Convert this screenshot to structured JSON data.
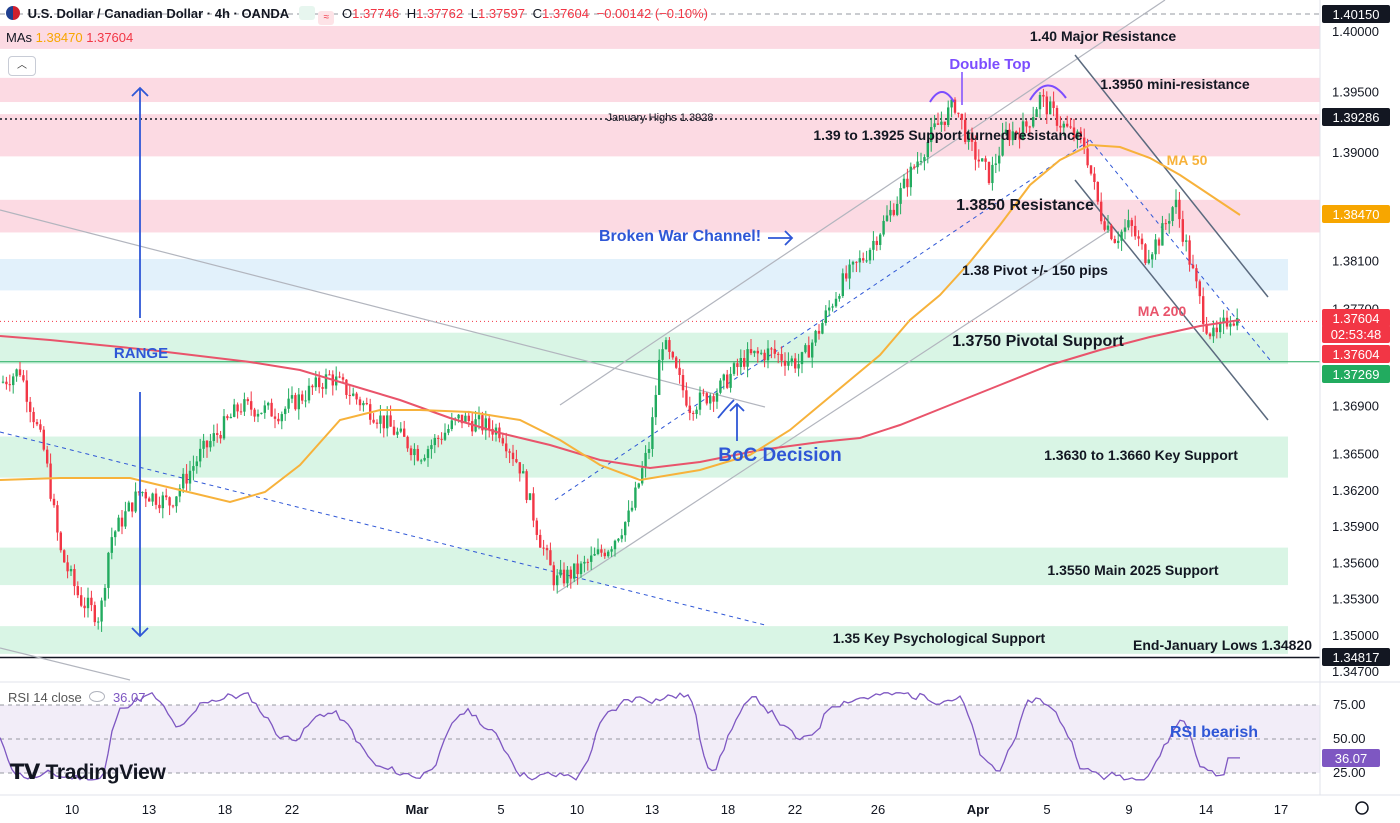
{
  "header": {
    "symbol": "U.S. Dollar / Canadian Dollar · 4h · OANDA",
    "open_label": "O",
    "open": "1.37746",
    "high_label": "H",
    "high": "1.37762",
    "low_label": "L",
    "low": "1.37597",
    "close_label": "C",
    "close": "1.37604",
    "change": "−0.00142 (−0.10%)"
  },
  "mas": {
    "label": "MAs",
    "ma50": "1.38470",
    "ma200": "1.37604"
  },
  "rsi": {
    "label": "RSI 14 close",
    "value": "36.07",
    "ticks": [
      "75.00",
      "50.00",
      "25.00"
    ],
    "annotation": "RSI bearish"
  },
  "watermark": "TradingView",
  "chart_data": {
    "type": "candlestick",
    "instrument": "USD/CAD",
    "timeframe": "4h",
    "ylim": [
      1.347,
      1.4015
    ],
    "price_ticks": [
      "1.40000",
      "1.39500",
      "1.39000",
      "1.38100",
      "1.37700",
      "1.36900",
      "1.36500",
      "1.36200",
      "1.35900",
      "1.35600",
      "1.35300",
      "1.35000",
      "1.34700"
    ],
    "x_ticks": [
      "10",
      "13",
      "18",
      "22",
      "Mar",
      "5",
      "10",
      "13",
      "18",
      "22",
      "26",
      "Apr",
      "5",
      "9",
      "14",
      "17"
    ],
    "price_badges": [
      {
        "text": "1.40150",
        "color": "#131722"
      },
      {
        "text": "1.39286",
        "color": "#131722"
      },
      {
        "text": "1.38470",
        "color": "#f7a600"
      },
      {
        "text": "1.37604",
        "color": "#f23645"
      },
      {
        "text": "02:53:48",
        "color": "#f23645"
      },
      {
        "text": "1.37604",
        "color": "#f23645"
      },
      {
        "text": "1.37269",
        "color": "#22ab5f"
      },
      {
        "text": "1.34817",
        "color": "#131722"
      }
    ],
    "zones": [
      {
        "label": "1.40 Major Resistance",
        "low": 1.3986,
        "high": 1.4005,
        "kind": "resistance"
      },
      {
        "label": "1.3950 mini-resistance",
        "low": 1.3942,
        "high": 1.3962,
        "kind": "resistance"
      },
      {
        "label": "1.39 to 1.3925 Support turned resistance",
        "low": 1.3897,
        "high": 1.3932,
        "kind": "resistance"
      },
      {
        "label": "1.3850 Resistance",
        "low": 1.3834,
        "high": 1.3861,
        "kind": "resistance"
      },
      {
        "label": "1.38 Pivot +/- 150 pips",
        "low": 1.3786,
        "high": 1.3812,
        "kind": "pivot"
      },
      {
        "label": "1.3750 Pivotal Support",
        "low": 1.3725,
        "high": 1.3751,
        "kind": "support"
      },
      {
        "label": "1.3630 to 1.3660 Key Support",
        "low": 1.3631,
        "high": 1.3665,
        "kind": "support"
      },
      {
        "label": "1.3550 Main 2025 Support",
        "low": 1.3542,
        "high": 1.3573,
        "kind": "support"
      },
      {
        "label": "1.35 Key Psychological Support",
        "low": 1.3485,
        "high": 1.3508,
        "kind": "support"
      }
    ],
    "levels": [
      {
        "label": "January Highs 1.3928",
        "price": 1.3928
      },
      {
        "label": "End-January Lows 1.34820",
        "price": 1.3482
      }
    ],
    "annotations": [
      "Double Top",
      "Broken War Channel!",
      "BoC Decision",
      "RANGE",
      "MA 50",
      "MA 200"
    ],
    "last_price": 1.37604,
    "ma50_last": 1.3847,
    "ma200_last": 1.37604,
    "rsi_last": 36.07
  },
  "colors": {
    "up": "#22ab5f",
    "down": "#f23645",
    "ma50": "#f7b23b",
    "ma200": "#e9546b",
    "resistance_zone": "#fcd3de",
    "support_zone": "#d2f3e1",
    "pivot_zone": "#ddeefa",
    "annotation_blue": "#2f57d6",
    "rsi": "#7e57c2"
  }
}
